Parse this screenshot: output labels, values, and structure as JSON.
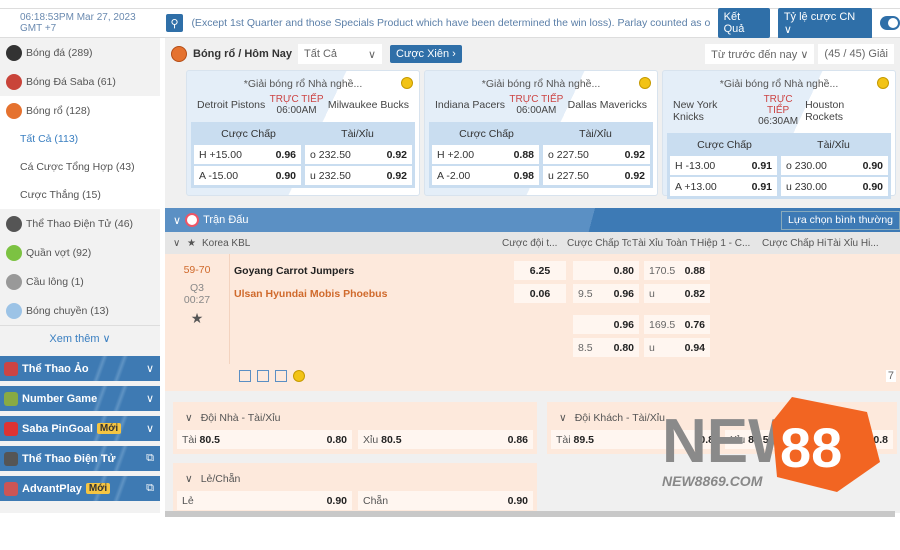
{
  "topbar": {
    "clock": "06:18:53PM Mar 27, 2023 GMT +7",
    "ticker": "(Except 1st Quarter and those Specials Product which have been determined the win loss). Parlay counted as one (1). Thank",
    "results_label": "Kết Quả",
    "odds_label": "Tỷ lệ cược CN ∨"
  },
  "sidebar": {
    "items": [
      {
        "label": "Bóng đá (289)",
        "color": "#333"
      },
      {
        "label": "Bóng Đá Saba (61)",
        "color": "#c9443a"
      },
      {
        "label": "Bóng rổ (128)",
        "color": "#e5722f"
      }
    ],
    "subitems": [
      "Tất Cả (113)",
      "Cá Cược Tổng Hợp (43)",
      "Cược Thắng (15)"
    ],
    "items2": [
      {
        "label": "Thể Thao Điện Tử (46)",
        "color": "#555"
      },
      {
        "label": "Quần vợt (92)",
        "color": "#7cc242"
      },
      {
        "label": "Cầu lông (1)",
        "color": "#999"
      },
      {
        "label": "Bóng chuyền (13)",
        "color": "#9cc3e6"
      }
    ],
    "more": "Xem thêm ∨",
    "bars": [
      {
        "label": "Thể Thao Ảo",
        "badge": "",
        "end": "∨"
      },
      {
        "label": "Number Game",
        "badge": "",
        "end": "∨"
      },
      {
        "label": "Saba PinGoal",
        "badge": "Mới",
        "end": "∨"
      },
      {
        "label": "Thể Thao Điện Tử",
        "badge": "",
        "end": "⧉"
      },
      {
        "label": "AdvantPlay",
        "badge": "Mới",
        "end": "⧉"
      }
    ]
  },
  "toolbar": {
    "title": "Bóng rổ / Hôm Nay",
    "filter": "Tất Cả",
    "parlay": "Cược Xiên ›",
    "sort": "Từ trước đến nay ∨",
    "count": "(45 / 45) Giải"
  },
  "cards": [
    {
      "league": "*Giải bóng rổ Nhà nghề...",
      "home": "Detroit Pistons",
      "away": "Milwaukee Bucks",
      "live": "TRỰC TIẾP",
      "time": "06:00AM",
      "h1": "Cược Chấp",
      "h2": "Tài/Xỉu",
      "rows": [
        [
          "H +15.00",
          "0.96",
          "o 232.50",
          "0.92"
        ],
        [
          "A -15.00",
          "0.90",
          "u 232.50",
          "0.92"
        ]
      ]
    },
    {
      "league": "*Giải bóng rổ Nhà nghề...",
      "home": "Indiana Pacers",
      "away": "Dallas Mavericks",
      "live": "TRỰC TIẾP",
      "time": "06:00AM",
      "h1": "Cược Chấp",
      "h2": "Tài/Xỉu",
      "rows": [
        [
          "H +2.00",
          "0.88",
          "o 227.50",
          "0.92"
        ],
        [
          "A -2.00",
          "0.98",
          "u 227.50",
          "0.92"
        ]
      ]
    },
    {
      "league": "*Giải bóng rổ Nhà nghề...",
      "home": "New York Knicks",
      "away": "Houston Rockets",
      "live": "TRỰC TIẾP",
      "time": "06:30AM",
      "h1": "Cược Chấp",
      "h2": "Tài/Xỉu",
      "rows": [
        [
          "H -13.00",
          "0.91",
          "o 230.00",
          "0.90"
        ],
        [
          "A +13.00",
          "0.91",
          "u 230.00",
          "0.90"
        ]
      ]
    }
  ],
  "match": {
    "section": "Trận Đấu",
    "option": "Lựa chọn bình thường",
    "league": "Korea KBL",
    "headers": [
      "Cược đội t...",
      "Cược Chấp To...",
      "Tài Xỉu Toàn Tr...",
      "Hiệp 1 - C...",
      "Cược Chấp Hi...",
      "Tài Xỉu Hi..."
    ],
    "score": "59-70",
    "period": "Q3",
    "clock": "00:27",
    "home": "Goyang Carrot Jumpers",
    "away": "Ulsan Hyundai Mobis Phoebus",
    "odds": {
      "ml": [
        "6.25",
        "0.06"
      ],
      "hdp1": [
        [
          "",
          "0.80"
        ],
        [
          "9.5",
          "0.96"
        ]
      ],
      "ou1": [
        [
          "170.5",
          "0.88"
        ],
        [
          "u",
          "0.82"
        ]
      ],
      "hdp2": [
        [
          "",
          "0.96"
        ],
        [
          "8.5",
          "0.80"
        ]
      ],
      "ou2": [
        [
          "169.5",
          "0.76"
        ],
        [
          "u",
          "0.94"
        ]
      ]
    },
    "more_count": "7"
  },
  "extra": {
    "home_ou": {
      "title": "Đội Nhà - Tài/Xỉu",
      "a": [
        "Tài",
        "80.5",
        "0.80"
      ],
      "b": [
        "Xỉu",
        "80.5",
        "0.86"
      ]
    },
    "away_ou": {
      "title": "Đội Khách - Tài/Xỉu",
      "a": [
        "Tài",
        "89.5",
        "0.8"
      ],
      "b": [
        "Xỉu",
        "89.5",
        "0.8"
      ]
    },
    "oddeven": {
      "title": "Lẻ/Chẵn",
      "a": [
        "Lẻ",
        "",
        "0.90"
      ],
      "b": [
        "Chẵn",
        "",
        "0.90"
      ]
    }
  },
  "watermark": {
    "brand": "NEW88",
    "url": "NEW8869.COM"
  },
  "colors": {
    "primary": "#2f6fa8",
    "live": "#c44444",
    "score": "#d06a2c",
    "match_bg": "#fde9dc"
  }
}
